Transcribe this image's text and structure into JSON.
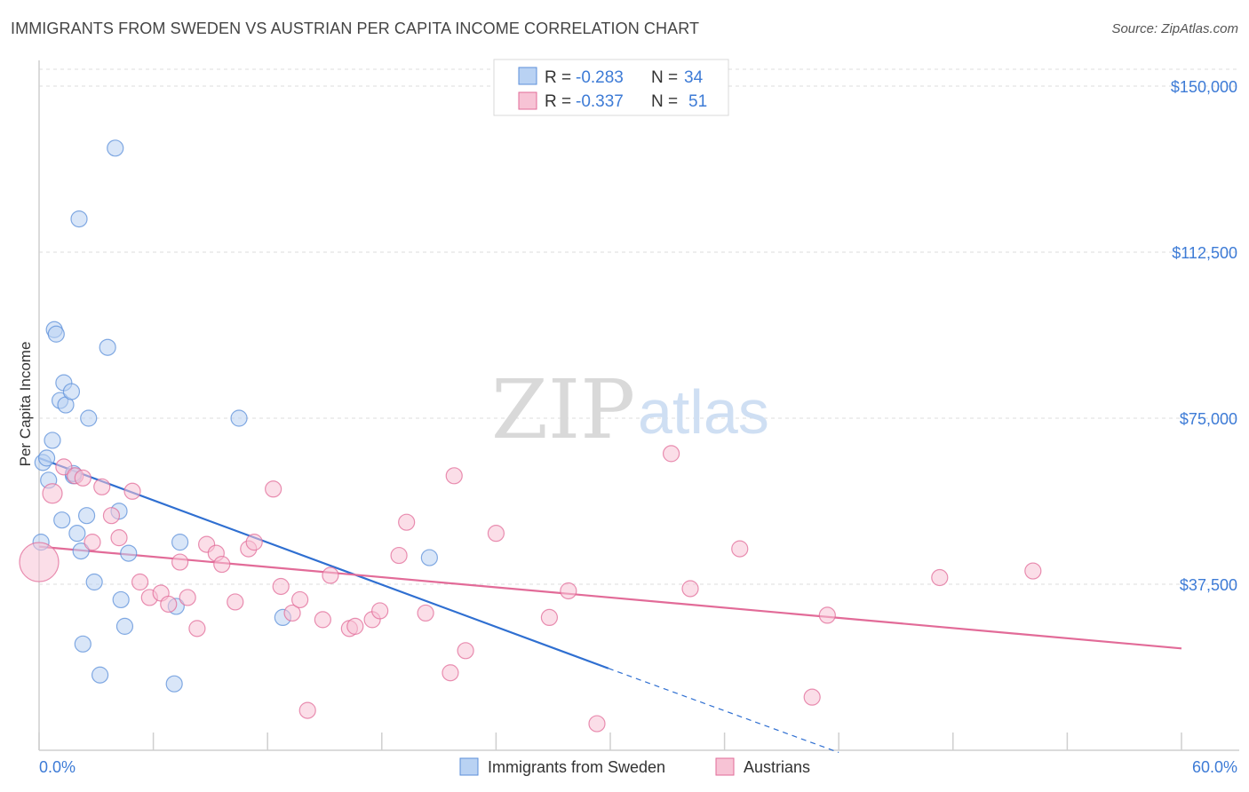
{
  "title": "IMMIGRANTS FROM SWEDEN VS AUSTRIAN PER CAPITA INCOME CORRELATION CHART",
  "source": "Source: ZipAtlas.com",
  "watermark": {
    "zip": "ZIP",
    "atlas": "atlas"
  },
  "colors": {
    "blue": "#5b8fd9",
    "blue_fill": "#b9d2f3",
    "pink": "#e26b98",
    "pink_fill": "#f7c3d5",
    "accent": "#3d7bd6"
  },
  "legend": {
    "r_label": "R =",
    "n_label": "N =",
    "rows": [
      {
        "r": "-0.283",
        "n": "34"
      },
      {
        "r": "-0.337",
        "n": "51"
      }
    ]
  },
  "chart_data": {
    "type": "scatter",
    "title": "IMMIGRANTS FROM SWEDEN VS AUSTRIAN PER CAPITA INCOME CORRELATION CHART",
    "xlabel": "",
    "ylabel": "Per Capita Income",
    "xlim": [
      0,
      60
    ],
    "ylim": [
      0,
      155000
    ],
    "x_tick_labels": [
      "0.0%",
      "60.0%"
    ],
    "y_ticks": [
      37500,
      75000,
      112500,
      150000
    ],
    "y_tick_labels": [
      "$37,500",
      "$75,000",
      "$112,500",
      "$150,000"
    ],
    "legend_position": "top-center",
    "series": [
      {
        "name": "Immigrants from Sweden",
        "color": "blue",
        "points": [
          [
            0.1,
            47000
          ],
          [
            0.2,
            65000
          ],
          [
            0.4,
            66000
          ],
          [
            0.5,
            61000
          ],
          [
            0.7,
            70000
          ],
          [
            0.8,
            95000
          ],
          [
            0.9,
            94000
          ],
          [
            1.1,
            79000
          ],
          [
            1.2,
            52000
          ],
          [
            1.3,
            83000
          ],
          [
            1.4,
            78000
          ],
          [
            1.7,
            81000
          ],
          [
            1.8,
            62000
          ],
          [
            2.0,
            49000
          ],
          [
            2.1,
            120000
          ],
          [
            2.2,
            45000
          ],
          [
            2.3,
            24000
          ],
          [
            2.5,
            53000
          ],
          [
            2.6,
            75000
          ],
          [
            2.9,
            38000
          ],
          [
            3.2,
            17000
          ],
          [
            3.6,
            91000
          ],
          [
            4.0,
            136000
          ],
          [
            4.2,
            54000
          ],
          [
            4.3,
            34000
          ],
          [
            4.5,
            28000
          ],
          [
            4.7,
            44500
          ],
          [
            7.1,
            15000
          ],
          [
            7.2,
            32500
          ],
          [
            7.4,
            47000
          ],
          [
            10.5,
            75000
          ],
          [
            12.8,
            30000
          ],
          [
            20.5,
            43500
          ],
          [
            1.8,
            62500
          ]
        ],
        "trend": {
          "x0": 0,
          "y0": 66000,
          "x1": 29.9,
          "y1": 18500,
          "dash_to_x": 42,
          "dash_to_y": -500
        }
      },
      {
        "name": "Austrians",
        "color": "pink",
        "points": [
          [
            0.0,
            42500
          ],
          [
            0.7,
            58000
          ],
          [
            1.3,
            64000
          ],
          [
            1.9,
            62000
          ],
          [
            2.3,
            61500
          ],
          [
            2.8,
            47000
          ],
          [
            3.3,
            59500
          ],
          [
            3.8,
            53000
          ],
          [
            4.2,
            48000
          ],
          [
            4.9,
            58500
          ],
          [
            5.3,
            38000
          ],
          [
            5.8,
            34500
          ],
          [
            6.4,
            35500
          ],
          [
            6.8,
            33000
          ],
          [
            7.4,
            42500
          ],
          [
            7.8,
            34500
          ],
          [
            8.3,
            27500
          ],
          [
            8.8,
            46500
          ],
          [
            9.3,
            44500
          ],
          [
            9.6,
            42000
          ],
          [
            10.3,
            33500
          ],
          [
            11.0,
            45500
          ],
          [
            11.3,
            47000
          ],
          [
            12.3,
            59000
          ],
          [
            12.7,
            37000
          ],
          [
            13.3,
            31000
          ],
          [
            13.7,
            34000
          ],
          [
            14.1,
            9000
          ],
          [
            14.9,
            29500
          ],
          [
            15.3,
            39500
          ],
          [
            16.3,
            27500
          ],
          [
            16.6,
            28000
          ],
          [
            17.5,
            29500
          ],
          [
            17.9,
            31500
          ],
          [
            18.9,
            44000
          ],
          [
            19.3,
            51500
          ],
          [
            20.3,
            31000
          ],
          [
            21.6,
            17500
          ],
          [
            21.8,
            62000
          ],
          [
            22.4,
            22500
          ],
          [
            24.0,
            49000
          ],
          [
            26.8,
            30000
          ],
          [
            27.8,
            36000
          ],
          [
            29.3,
            6000
          ],
          [
            33.2,
            67000
          ],
          [
            34.2,
            36500
          ],
          [
            36.8,
            45500
          ],
          [
            41.4,
            30500
          ],
          [
            40.6,
            12000
          ],
          [
            47.3,
            39000
          ],
          [
            52.2,
            40500
          ]
        ],
        "trend": {
          "x0": 0,
          "y0": 46000,
          "x1": 60,
          "y1": 23000
        }
      }
    ]
  },
  "bottom_legend": [
    "Immigrants from Sweden",
    "Austrians"
  ]
}
